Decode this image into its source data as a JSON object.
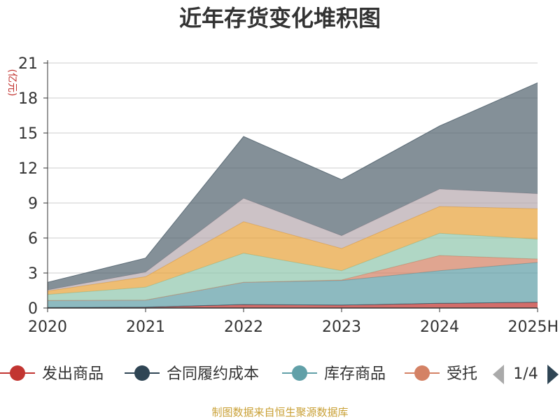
{
  "chart_data": {
    "type": "area",
    "stacked": true,
    "title": "近年存货变化堆积图",
    "ylabel": "(亿元)",
    "xlabel": "",
    "ylim": [
      0,
      21
    ],
    "yticks": [
      0,
      3,
      6,
      9,
      12,
      15,
      18,
      21
    ],
    "categories": [
      "2020",
      "2021",
      "2022",
      "2023",
      "2024",
      "2025H"
    ],
    "grid": true,
    "legend_position": "bottom",
    "series": [
      {
        "name": "发出商品",
        "color": "#c23531",
        "values": [
          0.05,
          0.08,
          0.3,
          0.25,
          0.4,
          0.5
        ]
      },
      {
        "name": "合同履约成本",
        "color": "#2f4554",
        "values": [
          0.0,
          0.0,
          0.0,
          0.0,
          0.0,
          0.0
        ]
      },
      {
        "name": "库存商品",
        "color": "#61a0a8",
        "values": [
          0.6,
          0.6,
          1.9,
          2.1,
          2.8,
          3.4
        ]
      },
      {
        "name": "受托",
        "color": "#d48265",
        "values": [
          0.0,
          0.0,
          0.0,
          0.05,
          1.3,
          0.3
        ]
      },
      {
        "name": "",
        "color": "#91c7ae",
        "values": [
          0.5,
          1.1,
          2.5,
          0.8,
          1.9,
          1.7
        ]
      },
      {
        "name": "",
        "color": "#e8a33d",
        "values": [
          0.3,
          0.9,
          2.7,
          1.9,
          2.3,
          2.6
        ]
      },
      {
        "name": "",
        "color": "#b8aab0",
        "values": [
          0.1,
          0.4,
          2.0,
          1.1,
          1.5,
          1.3
        ]
      },
      {
        "name": "",
        "color": "#546570",
        "values": [
          0.65,
          1.2,
          5.3,
          4.8,
          5.4,
          9.5
        ]
      }
    ]
  },
  "legend": {
    "items": [
      "发出商品",
      "合同履约成本",
      "库存商品",
      "受托"
    ],
    "page_indicator": "1/4"
  },
  "footer": {
    "source": "制图数据来自恒生聚源数据库"
  }
}
